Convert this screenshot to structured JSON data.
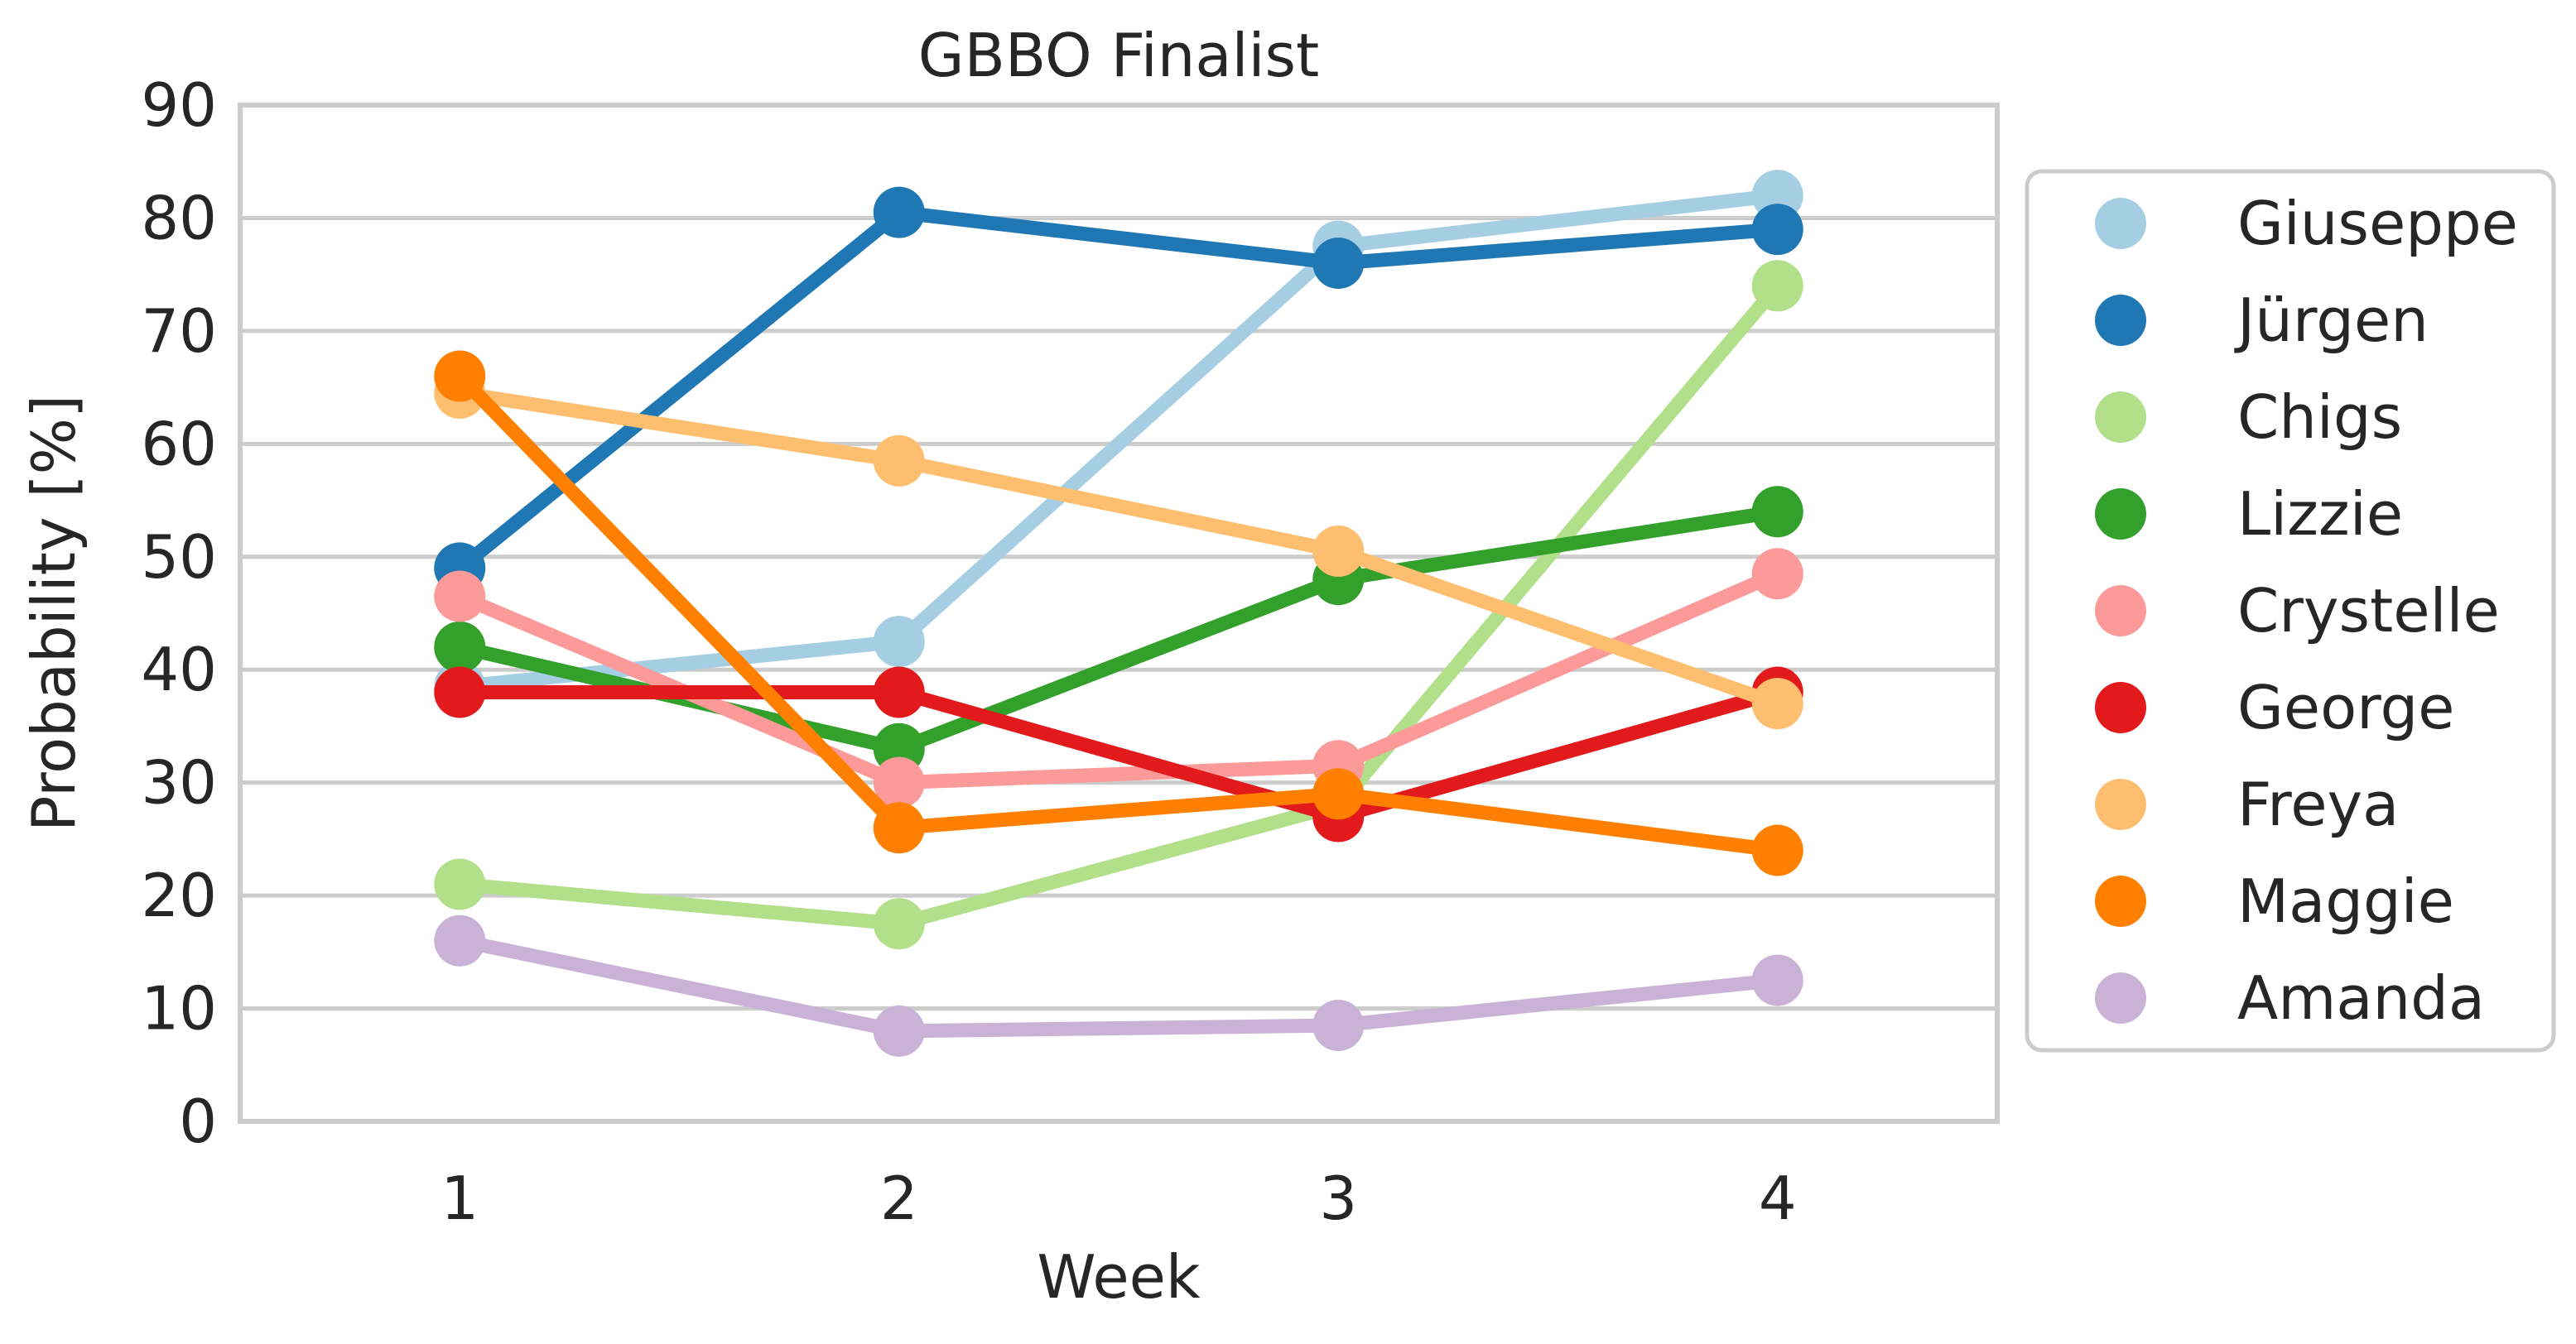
{
  "chart_data": {
    "type": "line",
    "title": "GBBO Finalist",
    "xlabel": "Week",
    "ylabel": "Probability [%]",
    "x": [
      1,
      2,
      3,
      4
    ],
    "x_tick_labels": [
      "1",
      "2",
      "3",
      "4"
    ],
    "ylim": [
      0,
      90
    ],
    "y_ticks": [
      0,
      10,
      20,
      30,
      40,
      50,
      60,
      70,
      80,
      90
    ],
    "y_tick_labels": [
      "0",
      "10",
      "20",
      "30",
      "40",
      "50",
      "60",
      "70",
      "80",
      "90"
    ],
    "grid": "horizontal",
    "legend_position": "right",
    "series": [
      {
        "name": "Giuseppe",
        "color": "#a6cee3",
        "values": [
          38.5,
          42.5,
          77.5,
          82
        ]
      },
      {
        "name": "Jürgen",
        "color": "#1f78b4",
        "values": [
          49,
          80.5,
          76,
          79
        ]
      },
      {
        "name": "Chigs",
        "color": "#b2df8a",
        "values": [
          21,
          17.5,
          28,
          74
        ]
      },
      {
        "name": "Lizzie",
        "color": "#33a02c",
        "values": [
          42,
          33,
          48,
          54
        ]
      },
      {
        "name": "Crystelle",
        "color": "#fb9a99",
        "values": [
          46.5,
          30,
          31.5,
          48.5
        ]
      },
      {
        "name": "George",
        "color": "#e31a1c",
        "values": [
          38,
          38,
          27,
          38
        ]
      },
      {
        "name": "Freya",
        "color": "#fdbf6f",
        "values": [
          64.5,
          58.5,
          50.5,
          37
        ]
      },
      {
        "name": "Maggie",
        "color": "#ff7f00",
        "values": [
          66,
          26,
          29,
          24
        ]
      },
      {
        "name": "Amanda",
        "color": "#cab2d6",
        "values": [
          16,
          8,
          8.5,
          12.5
        ]
      }
    ]
  }
}
